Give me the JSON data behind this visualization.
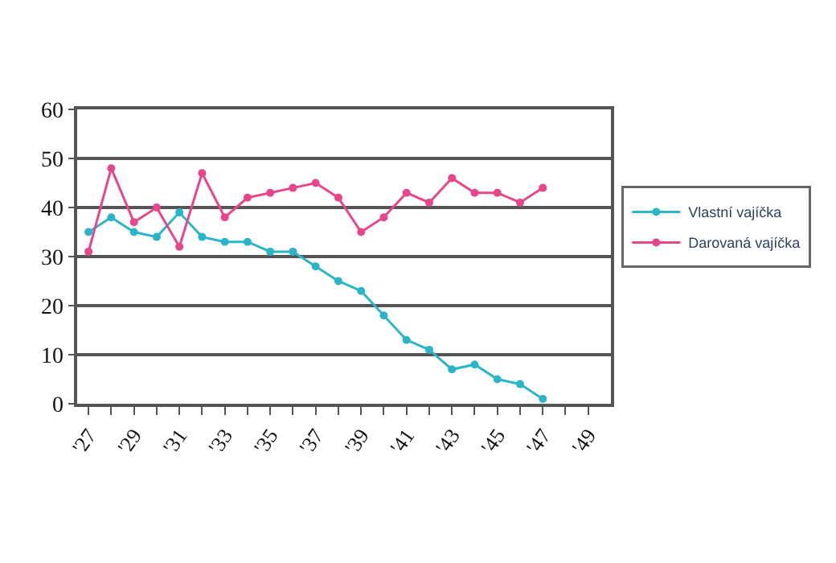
{
  "chart_data": {
    "type": "line",
    "x": [
      27,
      28,
      29,
      30,
      31,
      32,
      33,
      34,
      35,
      36,
      37,
      38,
      39,
      40,
      41,
      42,
      43,
      44,
      45,
      46,
      47
    ],
    "series": [
      {
        "name": "Vlastní vajíčka",
        "color": "#2bb5c8",
        "values": [
          35,
          38,
          35,
          34,
          39,
          34,
          33,
          33,
          31,
          31,
          28,
          25,
          23,
          18,
          13,
          11,
          7,
          8,
          5,
          4,
          1
        ]
      },
      {
        "name": "Darovaná vajíčka",
        "color": "#e8468a",
        "values": [
          31,
          48,
          37,
          40,
          32,
          47,
          38,
          42,
          43,
          44,
          45,
          42,
          35,
          38,
          43,
          41,
          46,
          43,
          43,
          41,
          44
        ]
      }
    ],
    "xlim": [
      26.5,
      50
    ],
    "xticks": [
      {
        "value": 27,
        "label": "'27"
      },
      {
        "value": 28,
        "label": null
      },
      {
        "value": 29,
        "label": "'29"
      },
      {
        "value": 30,
        "label": null
      },
      {
        "value": 31,
        "label": "'31"
      },
      {
        "value": 32,
        "label": null
      },
      {
        "value": 33,
        "label": "'33"
      },
      {
        "value": 34,
        "label": null
      },
      {
        "value": 35,
        "label": "'35"
      },
      {
        "value": 36,
        "label": null
      },
      {
        "value": 37,
        "label": "'37"
      },
      {
        "value": 38,
        "label": null
      },
      {
        "value": 39,
        "label": "'39"
      },
      {
        "value": 40,
        "label": null
      },
      {
        "value": 41,
        "label": "'41"
      },
      {
        "value": 42,
        "label": null
      },
      {
        "value": 43,
        "label": "'43"
      },
      {
        "value": 44,
        "label": null
      },
      {
        "value": 45,
        "label": "'45"
      },
      {
        "value": 46,
        "label": null
      },
      {
        "value": 47,
        "label": "'47"
      },
      {
        "value": 48,
        "label": null
      },
      {
        "value": 49,
        "label": "'49"
      }
    ],
    "ylim": [
      0,
      60
    ],
    "yticks": [
      0,
      10,
      20,
      30,
      40,
      50,
      60
    ],
    "grid": "y",
    "legend": "right",
    "marker": "circle",
    "line_style": "solid"
  }
}
